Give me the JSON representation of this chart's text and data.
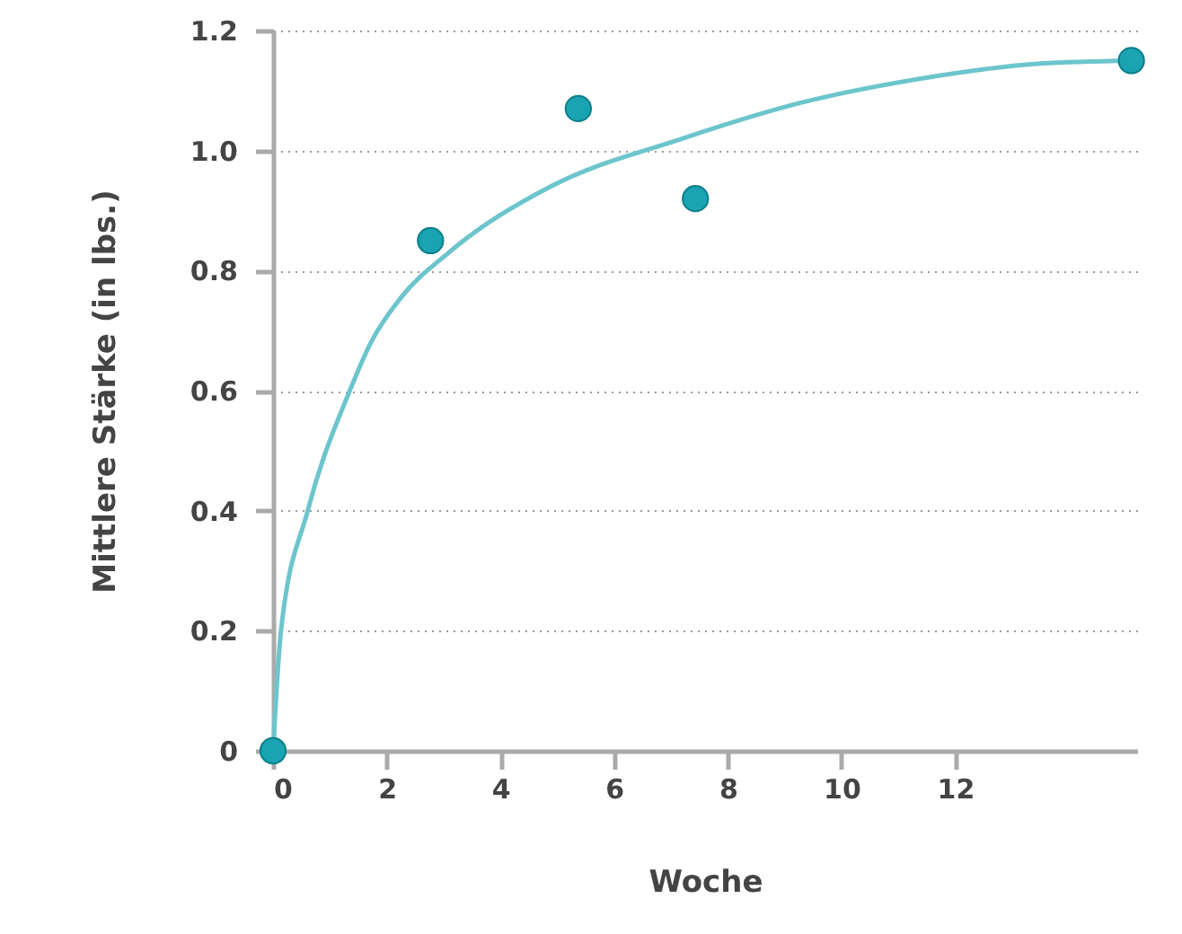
{
  "chart_data": {
    "type": "scatter",
    "xlabel": "Woche",
    "ylabel": "Mittlere Stärke (in lbs.)",
    "xlim": [
      0,
      15.2
    ],
    "xticks": [
      0,
      2,
      4,
      6,
      8,
      10,
      12
    ],
    "ylim": [
      0,
      1.2
    ],
    "yticks": [
      0,
      0.2,
      0.4,
      0.6,
      0.8,
      {
        "value": 1,
        "label": "1.0"
      },
      1.2
    ],
    "grid": "y",
    "series": [
      {
        "type": "line",
        "marker": "none",
        "color": "#6cc5cc",
        "x": [
          0,
          0.14,
          0.61,
          1.35,
          1.72,
          2.25,
          3.09,
          4.88,
          7.2,
          9.3,
          11.4,
          13.5,
          15.1
        ],
        "values": [
          0,
          0.2,
          0.4,
          0.6,
          0.68,
          0.755,
          0.83,
          0.94,
          1.02,
          1.08,
          1.12,
          1.145,
          1.15
        ]
      },
      {
        "marker": "circle",
        "color": "#1aa3b0",
        "x": [
          0,
          2.77,
          5.37,
          7.43,
          15.1
        ],
        "values": [
          0,
          0.85,
          1.07,
          0.92,
          1.15
        ]
      }
    ]
  }
}
